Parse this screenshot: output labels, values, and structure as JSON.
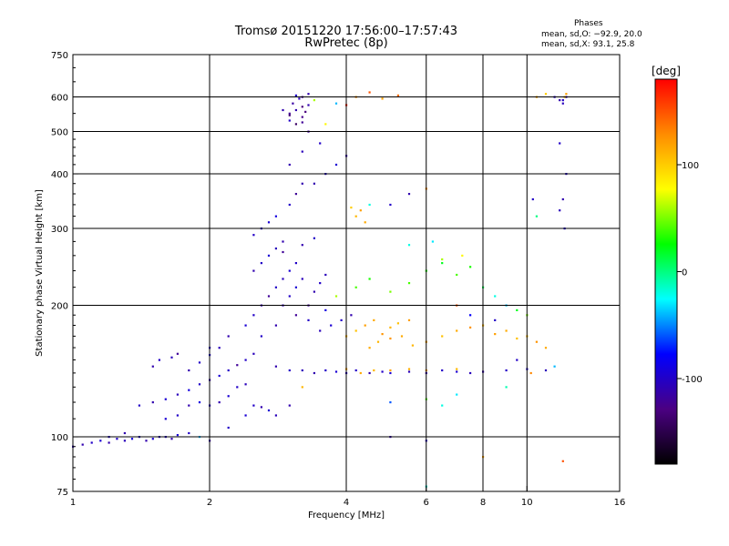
{
  "header": {
    "title_line1": "Tromsø 20151220 17:56:00–17:57:43",
    "title_line2": "RwPretec (8p)"
  },
  "phases": {
    "title": "Phases",
    "o_line": "mean, sd,O: −92.9, 20.0",
    "x_line": "mean, sd,X:  93.1, 25.8"
  },
  "chart_data": {
    "type": "scatter",
    "xlabel": "Frequency [MHz]",
    "ylabel": "Stationary phase Virtual Height [km]",
    "x_scale": "log",
    "y_scale": "log",
    "xlim": [
      1,
      16
    ],
    "ylim": [
      75,
      750
    ],
    "x_ticks": [
      1,
      2,
      4,
      6,
      8,
      10,
      16
    ],
    "y_ticks": [
      75,
      100,
      200,
      300,
      400,
      500,
      600,
      750
    ],
    "x_grid": [
      2,
      4,
      6,
      8,
      10
    ],
    "y_grid": [
      100,
      200,
      300,
      400,
      500,
      600
    ],
    "grid": true,
    "colorbar": {
      "label": "[deg]",
      "range": [
        -180,
        180
      ],
      "ticks": [
        -100,
        0,
        100
      ],
      "colors": [
        "#000000",
        "#4b0082",
        "#0000ff",
        "#00ffff",
        "#00ff00",
        "#ffff00",
        "#ff8c00",
        "#ff0000"
      ]
    },
    "series": [
      {
        "values": [
          [
            1.0,
            95,
            -105
          ],
          [
            1.05,
            96,
            -110
          ],
          [
            1.1,
            97,
            -100
          ],
          [
            1.15,
            98,
            -95
          ],
          [
            1.2,
            97,
            -110
          ],
          [
            1.25,
            99,
            -100
          ],
          [
            1.3,
            98,
            -105
          ],
          [
            1.35,
            99,
            -90
          ],
          [
            1.4,
            100,
            -100
          ],
          [
            1.45,
            98,
            -110
          ],
          [
            1.5,
            99,
            -95
          ],
          [
            1.55,
            100,
            -105
          ],
          [
            1.6,
            100,
            -100
          ],
          [
            1.65,
            99,
            -110
          ],
          [
            1.7,
            101,
            -95
          ],
          [
            1.8,
            102,
            -100
          ],
          [
            1.4,
            118,
            -100
          ],
          [
            1.5,
            120,
            -110
          ],
          [
            1.6,
            122,
            -95
          ],
          [
            1.7,
            125,
            -105
          ],
          [
            1.8,
            128,
            -90
          ],
          [
            1.9,
            132,
            -100
          ],
          [
            2.0,
            135,
            -110
          ],
          [
            2.1,
            138,
            -95
          ],
          [
            2.2,
            142,
            -100
          ],
          [
            2.3,
            146,
            -120
          ],
          [
            2.4,
            150,
            -100
          ],
          [
            2.5,
            155,
            -105
          ],
          [
            1.6,
            110,
            -95
          ],
          [
            1.7,
            112,
            -100
          ],
          [
            1.8,
            118,
            -110
          ],
          [
            1.9,
            120,
            -90
          ],
          [
            2.0,
            118,
            -100
          ],
          [
            2.1,
            120,
            -110
          ],
          [
            2.2,
            124,
            -95
          ],
          [
            2.3,
            130,
            -100
          ],
          [
            2.4,
            132,
            -105
          ],
          [
            2.5,
            118,
            -100
          ],
          [
            2.6,
            117,
            -110
          ],
          [
            2.7,
            115,
            -95
          ],
          [
            2.0,
            160,
            -100
          ],
          [
            2.2,
            170,
            -110
          ],
          [
            2.4,
            180,
            -95
          ],
          [
            2.5,
            190,
            -100
          ],
          [
            2.6,
            200,
            -110
          ],
          [
            2.7,
            210,
            -120
          ],
          [
            2.8,
            220,
            -100
          ],
          [
            2.9,
            230,
            -105
          ],
          [
            3.0,
            240,
            -95
          ],
          [
            3.1,
            250,
            -100
          ],
          [
            2.5,
            240,
            -110
          ],
          [
            2.6,
            250,
            -100
          ],
          [
            2.7,
            260,
            -95
          ],
          [
            2.8,
            270,
            -105
          ],
          [
            2.9,
            280,
            -110
          ],
          [
            2.6,
            300,
            -100
          ],
          [
            2.8,
            320,
            -90
          ],
          [
            3.0,
            340,
            -100
          ],
          [
            3.1,
            360,
            -120
          ],
          [
            3.2,
            380,
            -110
          ],
          [
            2.8,
            145,
            -110
          ],
          [
            3.0,
            142,
            -100
          ],
          [
            3.2,
            142,
            -105
          ],
          [
            3.4,
            140,
            -110
          ],
          [
            3.6,
            142,
            -100
          ],
          [
            3.8,
            141,
            -95
          ],
          [
            4.0,
            140,
            -105
          ],
          [
            4.2,
            142,
            -100
          ],
          [
            4.5,
            140,
            -110
          ],
          [
            4.8,
            141,
            -100
          ],
          [
            5.0,
            140,
            -95
          ],
          [
            5.5,
            141,
            -105
          ],
          [
            6.0,
            140,
            -110
          ],
          [
            6.5,
            142,
            -100
          ],
          [
            7.0,
            141,
            -95
          ],
          [
            7.5,
            140,
            -105
          ],
          [
            8.0,
            141,
            -110
          ],
          [
            9.0,
            142,
            -100
          ],
          [
            10.0,
            143,
            -95
          ],
          [
            11.0,
            142,
            -105
          ],
          [
            4.0,
            143,
            120
          ],
          [
            4.3,
            140,
            115
          ],
          [
            4.6,
            142,
            110
          ],
          [
            5.0,
            142,
            120
          ],
          [
            5.5,
            143,
            115
          ],
          [
            6.0,
            142,
            125
          ],
          [
            7.0,
            143,
            110
          ],
          [
            3.2,
            130,
            110
          ],
          [
            4.0,
            170,
            110
          ],
          [
            4.2,
            175,
            105
          ],
          [
            4.4,
            180,
            120
          ],
          [
            4.6,
            185,
            115
          ],
          [
            4.8,
            172,
            125
          ],
          [
            5.0,
            178,
            110
          ],
          [
            5.2,
            182,
            105
          ],
          [
            5.5,
            185,
            120
          ],
          [
            4.5,
            160,
            115
          ],
          [
            4.7,
            165,
            110
          ],
          [
            5.0,
            168,
            125
          ],
          [
            5.3,
            170,
            115
          ],
          [
            5.6,
            162,
            110
          ],
          [
            6.0,
            165,
            120
          ],
          [
            6.5,
            170,
            105
          ],
          [
            7.0,
            175,
            115
          ],
          [
            7.5,
            178,
            125
          ],
          [
            8.0,
            180,
            110
          ],
          [
            8.5,
            172,
            120
          ],
          [
            9.0,
            175,
            115
          ],
          [
            9.5,
            168,
            105
          ],
          [
            10.0,
            170,
            110
          ],
          [
            10.5,
            165,
            125
          ],
          [
            11.0,
            160,
            115
          ],
          [
            3.8,
            210,
            60
          ],
          [
            4.2,
            220,
            40
          ],
          [
            4.5,
            230,
            30
          ],
          [
            5.0,
            215,
            50
          ],
          [
            5.5,
            225,
            40
          ],
          [
            6.0,
            240,
            30
          ],
          [
            6.5,
            250,
            20
          ],
          [
            7.0,
            235,
            40
          ],
          [
            7.5,
            245,
            30
          ],
          [
            8.0,
            220,
            10
          ],
          [
            8.5,
            210,
            -20
          ],
          [
            9.0,
            200,
            -40
          ],
          [
            9.5,
            195,
            20
          ],
          [
            10.0,
            190,
            50
          ],
          [
            6.5,
            255,
            60
          ],
          [
            7.2,
            260,
            80
          ],
          [
            3.0,
            550,
            -120
          ],
          [
            3.1,
            560,
            -110
          ],
          [
            3.2,
            570,
            -130
          ],
          [
            3.0,
            530,
            -100
          ],
          [
            3.2,
            600,
            -120
          ],
          [
            3.3,
            610,
            -110
          ],
          [
            3.1,
            520,
            -140
          ],
          [
            3.2,
            540,
            -125
          ],
          [
            3.05,
            580,
            -115
          ],
          [
            3.15,
            595,
            -105
          ],
          [
            3.25,
            555,
            -130
          ],
          [
            3.3,
            575,
            -110
          ],
          [
            3.1,
            605,
            -100
          ],
          [
            3.2,
            525,
            -120
          ],
          [
            3.0,
            545,
            -135
          ],
          [
            2.9,
            560,
            -110
          ],
          [
            3.4,
            590,
            60
          ],
          [
            3.8,
            580,
            -40
          ],
          [
            4.2,
            600,
            130
          ],
          [
            4.5,
            615,
            150
          ],
          [
            4.8,
            595,
            120
          ],
          [
            5.2,
            605,
            140
          ],
          [
            3.6,
            520,
            80
          ],
          [
            4.0,
            575,
            170
          ],
          [
            11.5,
            600,
            -100
          ],
          [
            11.8,
            590,
            -110
          ],
          [
            12.0,
            580,
            -105
          ],
          [
            11.0,
            610,
            100
          ],
          [
            10.5,
            600,
            120
          ],
          [
            12.0,
            590,
            -100
          ],
          [
            12.2,
            600,
            -105
          ],
          [
            11.8,
            470,
            -100
          ],
          [
            4.2,
            320,
            110
          ],
          [
            4.3,
            330,
            120
          ],
          [
            4.4,
            310,
            115
          ],
          [
            4.5,
            340,
            -20
          ],
          [
            4.1,
            335,
            100
          ],
          [
            5.0,
            340,
            -100
          ],
          [
            5.5,
            360,
            -110
          ],
          [
            6.0,
            370,
            130
          ],
          [
            12.2,
            400,
            -100
          ],
          [
            12.0,
            350,
            -110
          ],
          [
            12.1,
            300,
            -95
          ],
          [
            11.8,
            330,
            -105
          ],
          [
            10.5,
            320,
            0
          ],
          [
            10.3,
            350,
            -100
          ],
          [
            12.1,
            600,
            110
          ],
          [
            12.2,
            610,
            120
          ],
          [
            1.5,
            145,
            -110
          ],
          [
            1.55,
            150,
            -100
          ],
          [
            1.65,
            152,
            -105
          ],
          [
            1.7,
            155,
            -120
          ],
          [
            1.8,
            142,
            -110
          ],
          [
            1.9,
            148,
            -100
          ],
          [
            2.0,
            154,
            -95
          ],
          [
            2.1,
            160,
            -105
          ],
          [
            3.4,
            380,
            -110
          ],
          [
            3.6,
            400,
            -100
          ],
          [
            3.8,
            420,
            -95
          ],
          [
            4.0,
            440,
            -110
          ],
          [
            3.5,
            470,
            -100
          ],
          [
            3.3,
            500,
            -120
          ],
          [
            3.2,
            450,
            -105
          ],
          [
            3.0,
            420,
            -110
          ],
          [
            2.9,
            200,
            -110
          ],
          [
            3.0,
            210,
            -100
          ],
          [
            3.1,
            220,
            -95
          ],
          [
            3.2,
            230,
            -105
          ],
          [
            3.3,
            200,
            -120
          ],
          [
            3.4,
            215,
            -110
          ],
          [
            3.5,
            225,
            -100
          ],
          [
            3.6,
            235,
            -105
          ],
          [
            1.2,
            100,
            -100
          ],
          [
            1.3,
            102,
            -110
          ],
          [
            2.5,
            290,
            -100
          ],
          [
            2.7,
            310,
            -95
          ],
          [
            2.9,
            265,
            -120
          ],
          [
            3.2,
            275,
            -110
          ],
          [
            3.4,
            285,
            -100
          ],
          [
            3.6,
            195,
            -90
          ],
          [
            3.9,
            185,
            -100
          ],
          [
            4.1,
            190,
            -110
          ],
          [
            3.7,
            180,
            -95
          ],
          [
            3.5,
            175,
            -105
          ],
          [
            2.6,
            170,
            -100
          ],
          [
            2.8,
            180,
            -110
          ],
          [
            3.1,
            190,
            -120
          ],
          [
            3.3,
            185,
            -100
          ],
          [
            5.5,
            275,
            -20
          ],
          [
            6.2,
            280,
            -30
          ],
          [
            7.0,
            200,
            150
          ],
          [
            7.5,
            190,
            -80
          ],
          [
            8.5,
            185,
            -100
          ],
          [
            9.5,
            150,
            -100
          ],
          [
            10.2,
            140,
            130
          ],
          [
            11.5,
            145,
            -40
          ],
          [
            5.0,
            100,
            -110
          ],
          [
            6.0,
            98,
            -100
          ],
          [
            8.0,
            90,
            120
          ],
          [
            12.0,
            88,
            150
          ],
          [
            5.0,
            120,
            -60
          ],
          [
            6.0,
            122,
            40
          ],
          [
            6.5,
            118,
            -20
          ],
          [
            7.0,
            125,
            -30
          ],
          [
            9.0,
            130,
            -10
          ],
          [
            6.0,
            77,
            -20
          ],
          [
            1.9,
            100,
            -40
          ],
          [
            2.0,
            98,
            -110
          ],
          [
            2.2,
            105,
            -100
          ],
          [
            2.4,
            112,
            -95
          ],
          [
            2.8,
            112,
            -105
          ],
          [
            3.0,
            118,
            -110
          ]
        ]
      }
    ]
  }
}
